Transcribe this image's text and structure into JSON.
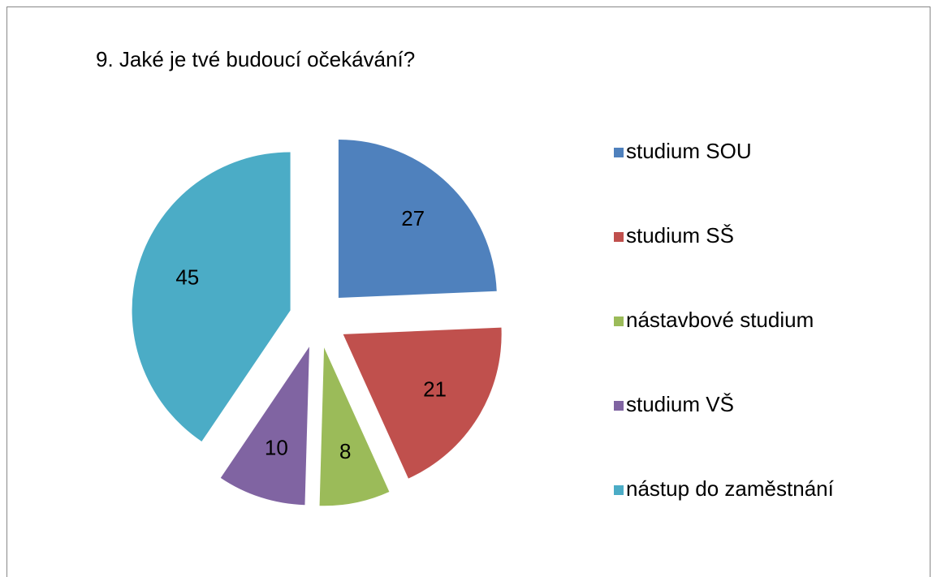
{
  "chart_data": {
    "type": "pie",
    "title": "9. Jaké je tvé budoucí očekávání?",
    "categories": [
      "studium SOU",
      "studium SŠ",
      "nástavbové studium",
      "studium VŠ",
      "nástup do zaměstnání"
    ],
    "values": [
      27,
      21,
      8,
      10,
      45
    ],
    "colors": [
      "#4f81bd",
      "#c0504d",
      "#9bbb59",
      "#8064a2",
      "#4bacc6"
    ],
    "legend": "right"
  }
}
